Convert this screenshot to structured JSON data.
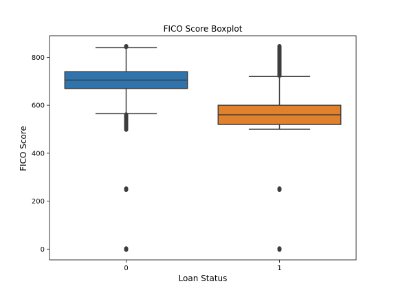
{
  "chart_data": {
    "type": "box",
    "title": "FICO Score Boxplot",
    "xlabel": "Loan Status",
    "ylabel": "FICO Score",
    "categories": [
      "0",
      "1"
    ],
    "ylim": [
      -45,
      890
    ],
    "yticks": [
      0,
      200,
      400,
      600,
      800
    ],
    "grid": false,
    "legend": "none",
    "series": [
      {
        "category": "0",
        "color": "#2f74ad",
        "q1": 670,
        "median": 705,
        "q3": 740,
        "whisker_low": 565,
        "whisker_high": 840,
        "outliers_low_range": [
          495,
          565
        ],
        "outliers_high_range": [
          840,
          850
        ],
        "outliers_extra": [
          0,
          250
        ]
      },
      {
        "category": "1",
        "color": "#e1812c",
        "q1": 520,
        "median": 560,
        "q3": 600,
        "whisker_low": 500,
        "whisker_high": 720,
        "outliers_low_range": null,
        "outliers_high_range": [
          720,
          850
        ],
        "outliers_extra": [
          0,
          250
        ]
      }
    ]
  }
}
